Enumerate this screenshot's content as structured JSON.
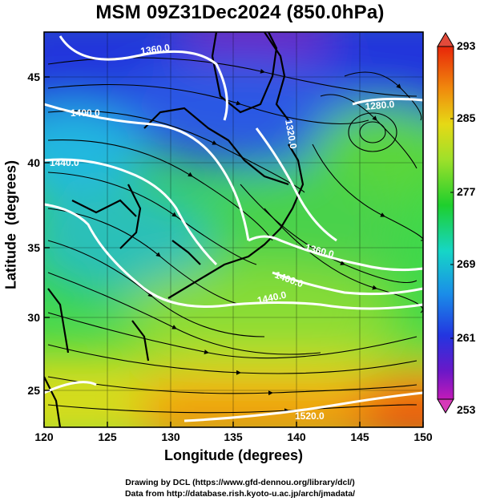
{
  "title": "MSM 09Z31Dec2024 (850.0hPa)",
  "map": {
    "xlabel": "Longitude (degrees)",
    "ylabel": "Latitude  (degrees)",
    "x_ticks": [
      "120",
      "125",
      "130",
      "135",
      "140",
      "145",
      "150"
    ],
    "y_ticks": [
      "25",
      "30",
      "35",
      "40",
      "45"
    ],
    "lon_range": [
      120,
      150
    ],
    "lat_range": [
      22.5,
      47.5
    ]
  },
  "contour_labels": [
    "1360.0",
    "1400.0",
    "1440.0",
    "1320.0",
    "1280.0",
    "1360.0",
    "1400.0",
    "1440.0",
    "1520.0"
  ],
  "colorbar": {
    "ticks": [
      "293",
      "285",
      "277",
      "269",
      "261",
      "253"
    ],
    "min": 253,
    "max": 293
  },
  "credits": {
    "line1": "Drawing by DCL (https://www.gfd-dennou.org/library/dcl/)",
    "line2": "Data from http://database.rish.kyoto-u.ac.jp/arch/jmadata/"
  }
}
